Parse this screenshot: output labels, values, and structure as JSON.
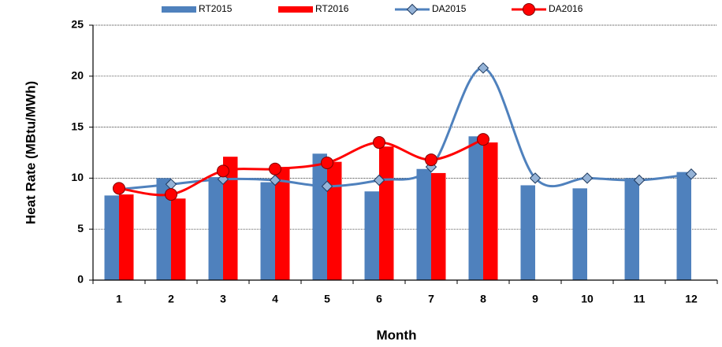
{
  "chart_data": {
    "type": "bar_line",
    "x_label": "Month",
    "y_label": "Heat Rate (MBtu/MWh)",
    "categories": [
      "1",
      "2",
      "3",
      "4",
      "5",
      "6",
      "7",
      "8",
      "9",
      "10",
      "11",
      "12"
    ],
    "series": [
      {
        "name": "RT2015",
        "type": "bar",
        "color": "#4f81bd",
        "values": [
          8.3,
          10.0,
          10.1,
          9.6,
          12.4,
          8.7,
          10.9,
          14.1,
          9.3,
          9.0,
          10.0,
          10.6
        ]
      },
      {
        "name": "RT2016",
        "type": "bar",
        "color": "#ff0000",
        "values": [
          8.4,
          8.0,
          12.1,
          11.1,
          11.6,
          13.1,
          10.5,
          13.5,
          null,
          null,
          null,
          null
        ]
      },
      {
        "name": "DA2015",
        "type": "line",
        "marker": "diamond",
        "color": "#4f81bd",
        "values": [
          8.9,
          9.4,
          9.9,
          9.8,
          9.2,
          9.8,
          11.1,
          20.8,
          10.0,
          10.0,
          9.8,
          10.4
        ]
      },
      {
        "name": "DA2016",
        "type": "line",
        "marker": "circle",
        "color": "#ff0000",
        "values": [
          9.0,
          8.4,
          10.7,
          10.9,
          11.5,
          13.5,
          11.8,
          13.8,
          null,
          null,
          null,
          null
        ]
      }
    ],
    "ylim": [
      0,
      25
    ],
    "yticks": [
      0,
      5,
      10,
      15,
      20,
      25
    ],
    "grid": true,
    "legend": "top"
  }
}
